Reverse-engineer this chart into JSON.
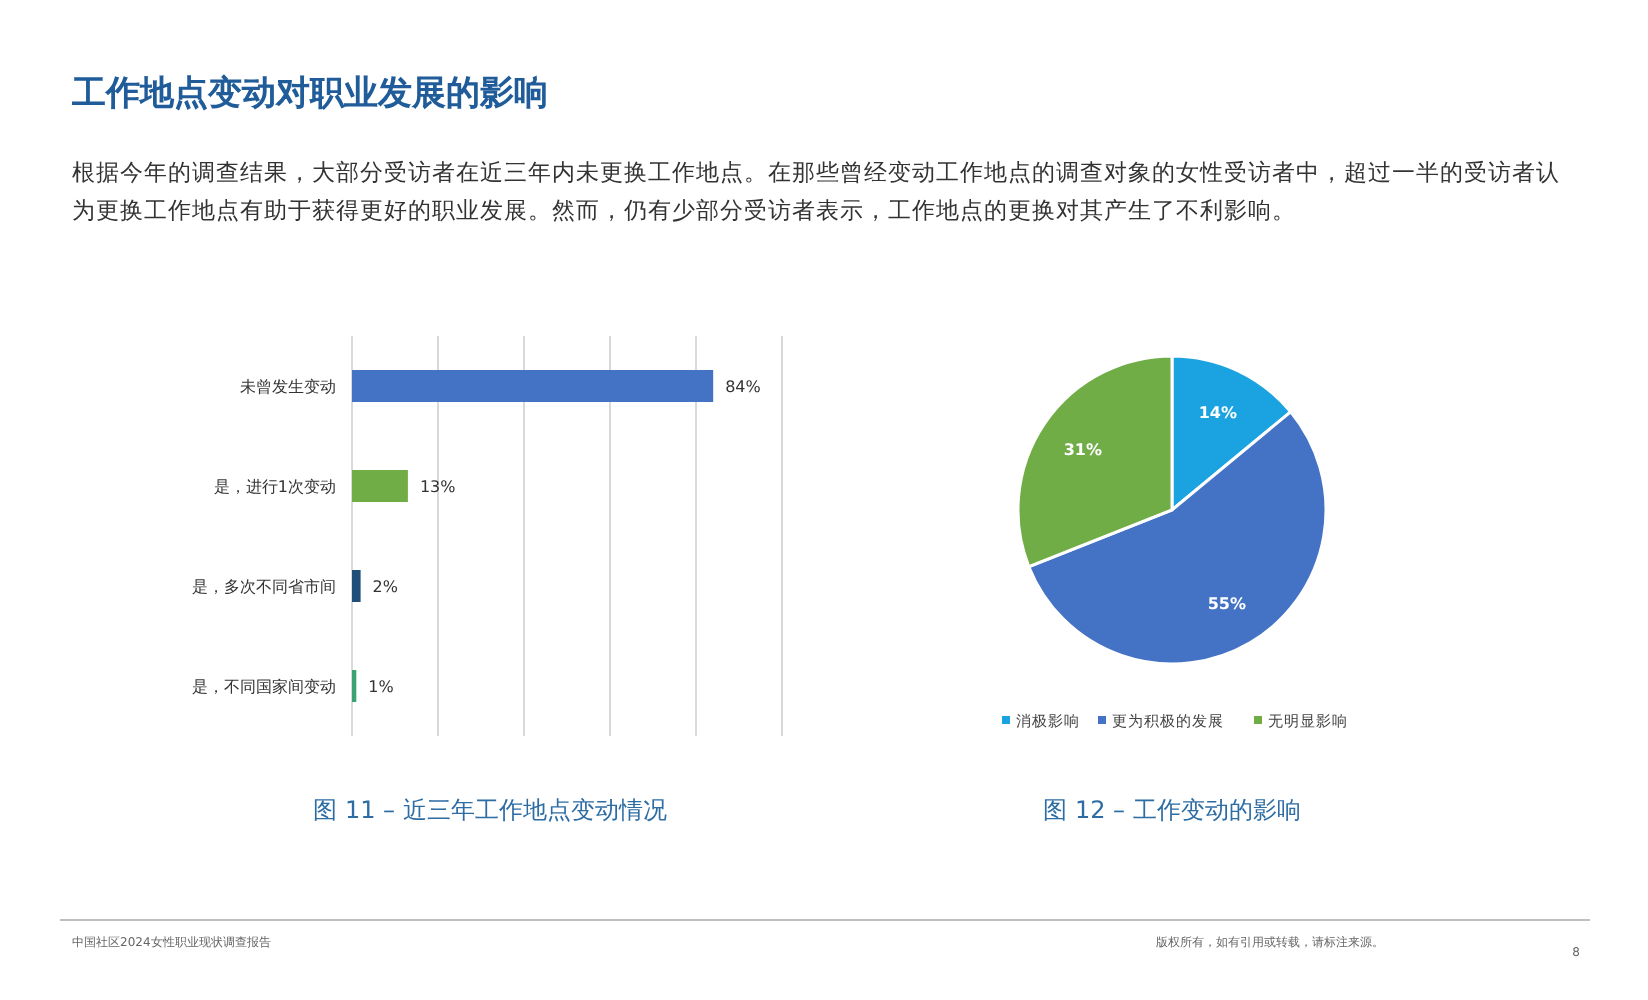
{
  "chart_data": [
    {
      "type": "bar",
      "orientation": "horizontal",
      "title": "工作地点变动对职业发展的影响",
      "subtitle": "根据今年的调查结果，大部分受访者在近三年内未更换工作地点。在那些曾经变动工作地点的调查对象的女性受访者中，超过一半的受访者认为更换工作地点有助于获得更好的职业发展。然而，仍有少部分受访者表示，工作地点的更换对其产生了不利影响。",
      "categories": [
        "未曾发生变动",
        "是，进行1次变动",
        "是，多次不同省市间",
        "是，不同国家间变动"
      ],
      "values": [
        84,
        13,
        2,
        1
      ],
      "colors": [
        "#4472c4",
        "#70ad47",
        "#1f4e79",
        "#3aa370"
      ],
      "value_labels": [
        "84%",
        "13%",
        "2%",
        "1%"
      ],
      "xlim": [
        0,
        100
      ],
      "xticks": [
        {
          "value": 0,
          "label": null
        },
        {
          "value": 20,
          "label": null
        },
        {
          "value": 40,
          "label": null
        },
        {
          "value": 60,
          "label": null
        },
        {
          "value": 80,
          "label": null
        },
        {
          "value": 100,
          "label": null
        }
      ],
      "grid": "x",
      "tick_labels": "y",
      "annotations": [
        "图 11 – 近三年工作地点变动情况",
        "中国社区2024女性职业现状调查报告",
        "版权所有，如有引用或转载，请标注来源。",
        "8"
      ]
    },
    {
      "type": "pie",
      "categories": [
        "消极影响",
        "更为积极的发展",
        "无明显影响"
      ],
      "values": [
        14,
        55,
        31
      ],
      "colors": [
        "#1aa3e0",
        "#4472c4",
        "#70ad47"
      ],
      "value_labels": [
        "14%",
        "55%",
        "31%"
      ],
      "legend": "bottom",
      "annotations": [
        "图 12 – 工作变动的影响"
      ]
    }
  ]
}
